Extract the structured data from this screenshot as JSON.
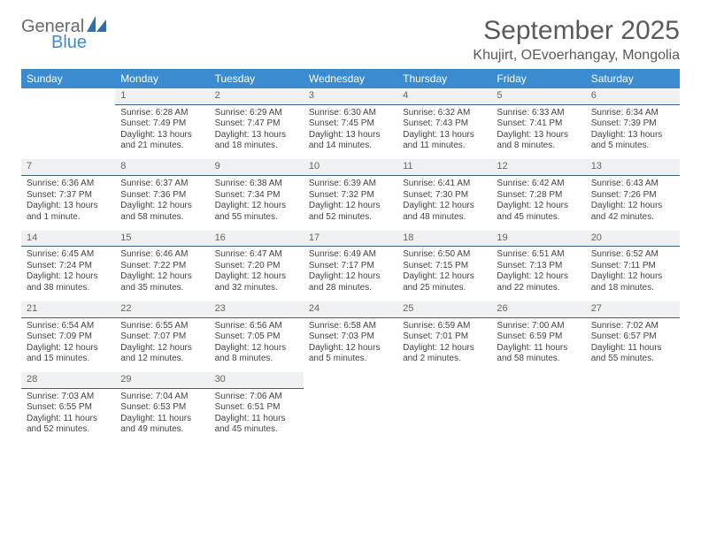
{
  "brand": {
    "word1": "General",
    "word2": "Blue"
  },
  "title": "September 2025",
  "location": "Khujirt, OEvoerhangay, Mongolia",
  "colors": {
    "header_bg": "#3b8bd0",
    "header_fg": "#ffffff",
    "daynum_bg": "#eef0f1",
    "daynum_border": "#3b5f85",
    "text": "#444444",
    "title_color": "#5a5a5a",
    "logo_gray": "#6a6a6a",
    "logo_blue": "#3b8bd0"
  },
  "weekdays": [
    "Sunday",
    "Monday",
    "Tuesday",
    "Wednesday",
    "Thursday",
    "Friday",
    "Saturday"
  ],
  "weeks": [
    [
      {
        "n": "",
        "lines": []
      },
      {
        "n": "1",
        "lines": [
          "Sunrise: 6:28 AM",
          "Sunset: 7:49 PM",
          "Daylight: 13 hours and 21 minutes."
        ]
      },
      {
        "n": "2",
        "lines": [
          "Sunrise: 6:29 AM",
          "Sunset: 7:47 PM",
          "Daylight: 13 hours and 18 minutes."
        ]
      },
      {
        "n": "3",
        "lines": [
          "Sunrise: 6:30 AM",
          "Sunset: 7:45 PM",
          "Daylight: 13 hours and 14 minutes."
        ]
      },
      {
        "n": "4",
        "lines": [
          "Sunrise: 6:32 AM",
          "Sunset: 7:43 PM",
          "Daylight: 13 hours and 11 minutes."
        ]
      },
      {
        "n": "5",
        "lines": [
          "Sunrise: 6:33 AM",
          "Sunset: 7:41 PM",
          "Daylight: 13 hours and 8 minutes."
        ]
      },
      {
        "n": "6",
        "lines": [
          "Sunrise: 6:34 AM",
          "Sunset: 7:39 PM",
          "Daylight: 13 hours and 5 minutes."
        ]
      }
    ],
    [
      {
        "n": "7",
        "lines": [
          "Sunrise: 6:36 AM",
          "Sunset: 7:37 PM",
          "Daylight: 13 hours and 1 minute."
        ]
      },
      {
        "n": "8",
        "lines": [
          "Sunrise: 6:37 AM",
          "Sunset: 7:36 PM",
          "Daylight: 12 hours and 58 minutes."
        ]
      },
      {
        "n": "9",
        "lines": [
          "Sunrise: 6:38 AM",
          "Sunset: 7:34 PM",
          "Daylight: 12 hours and 55 minutes."
        ]
      },
      {
        "n": "10",
        "lines": [
          "Sunrise: 6:39 AM",
          "Sunset: 7:32 PM",
          "Daylight: 12 hours and 52 minutes."
        ]
      },
      {
        "n": "11",
        "lines": [
          "Sunrise: 6:41 AM",
          "Sunset: 7:30 PM",
          "Daylight: 12 hours and 48 minutes."
        ]
      },
      {
        "n": "12",
        "lines": [
          "Sunrise: 6:42 AM",
          "Sunset: 7:28 PM",
          "Daylight: 12 hours and 45 minutes."
        ]
      },
      {
        "n": "13",
        "lines": [
          "Sunrise: 6:43 AM",
          "Sunset: 7:26 PM",
          "Daylight: 12 hours and 42 minutes."
        ]
      }
    ],
    [
      {
        "n": "14",
        "lines": [
          "Sunrise: 6:45 AM",
          "Sunset: 7:24 PM",
          "Daylight: 12 hours and 38 minutes."
        ]
      },
      {
        "n": "15",
        "lines": [
          "Sunrise: 6:46 AM",
          "Sunset: 7:22 PM",
          "Daylight: 12 hours and 35 minutes."
        ]
      },
      {
        "n": "16",
        "lines": [
          "Sunrise: 6:47 AM",
          "Sunset: 7:20 PM",
          "Daylight: 12 hours and 32 minutes."
        ]
      },
      {
        "n": "17",
        "lines": [
          "Sunrise: 6:49 AM",
          "Sunset: 7:17 PM",
          "Daylight: 12 hours and 28 minutes."
        ]
      },
      {
        "n": "18",
        "lines": [
          "Sunrise: 6:50 AM",
          "Sunset: 7:15 PM",
          "Daylight: 12 hours and 25 minutes."
        ]
      },
      {
        "n": "19",
        "lines": [
          "Sunrise: 6:51 AM",
          "Sunset: 7:13 PM",
          "Daylight: 12 hours and 22 minutes."
        ]
      },
      {
        "n": "20",
        "lines": [
          "Sunrise: 6:52 AM",
          "Sunset: 7:11 PM",
          "Daylight: 12 hours and 18 minutes."
        ]
      }
    ],
    [
      {
        "n": "21",
        "lines": [
          "Sunrise: 6:54 AM",
          "Sunset: 7:09 PM",
          "Daylight: 12 hours and 15 minutes."
        ]
      },
      {
        "n": "22",
        "lines": [
          "Sunrise: 6:55 AM",
          "Sunset: 7:07 PM",
          "Daylight: 12 hours and 12 minutes."
        ]
      },
      {
        "n": "23",
        "lines": [
          "Sunrise: 6:56 AM",
          "Sunset: 7:05 PM",
          "Daylight: 12 hours and 8 minutes."
        ]
      },
      {
        "n": "24",
        "lines": [
          "Sunrise: 6:58 AM",
          "Sunset: 7:03 PM",
          "Daylight: 12 hours and 5 minutes."
        ]
      },
      {
        "n": "25",
        "lines": [
          "Sunrise: 6:59 AM",
          "Sunset: 7:01 PM",
          "Daylight: 12 hours and 2 minutes."
        ]
      },
      {
        "n": "26",
        "lines": [
          "Sunrise: 7:00 AM",
          "Sunset: 6:59 PM",
          "Daylight: 11 hours and 58 minutes."
        ]
      },
      {
        "n": "27",
        "lines": [
          "Sunrise: 7:02 AM",
          "Sunset: 6:57 PM",
          "Daylight: 11 hours and 55 minutes."
        ]
      }
    ],
    [
      {
        "n": "28",
        "lines": [
          "Sunrise: 7:03 AM",
          "Sunset: 6:55 PM",
          "Daylight: 11 hours and 52 minutes."
        ]
      },
      {
        "n": "29",
        "lines": [
          "Sunrise: 7:04 AM",
          "Sunset: 6:53 PM",
          "Daylight: 11 hours and 49 minutes."
        ]
      },
      {
        "n": "30",
        "lines": [
          "Sunrise: 7:06 AM",
          "Sunset: 6:51 PM",
          "Daylight: 11 hours and 45 minutes."
        ]
      },
      {
        "n": "",
        "lines": []
      },
      {
        "n": "",
        "lines": []
      },
      {
        "n": "",
        "lines": []
      },
      {
        "n": "",
        "lines": []
      }
    ]
  ]
}
